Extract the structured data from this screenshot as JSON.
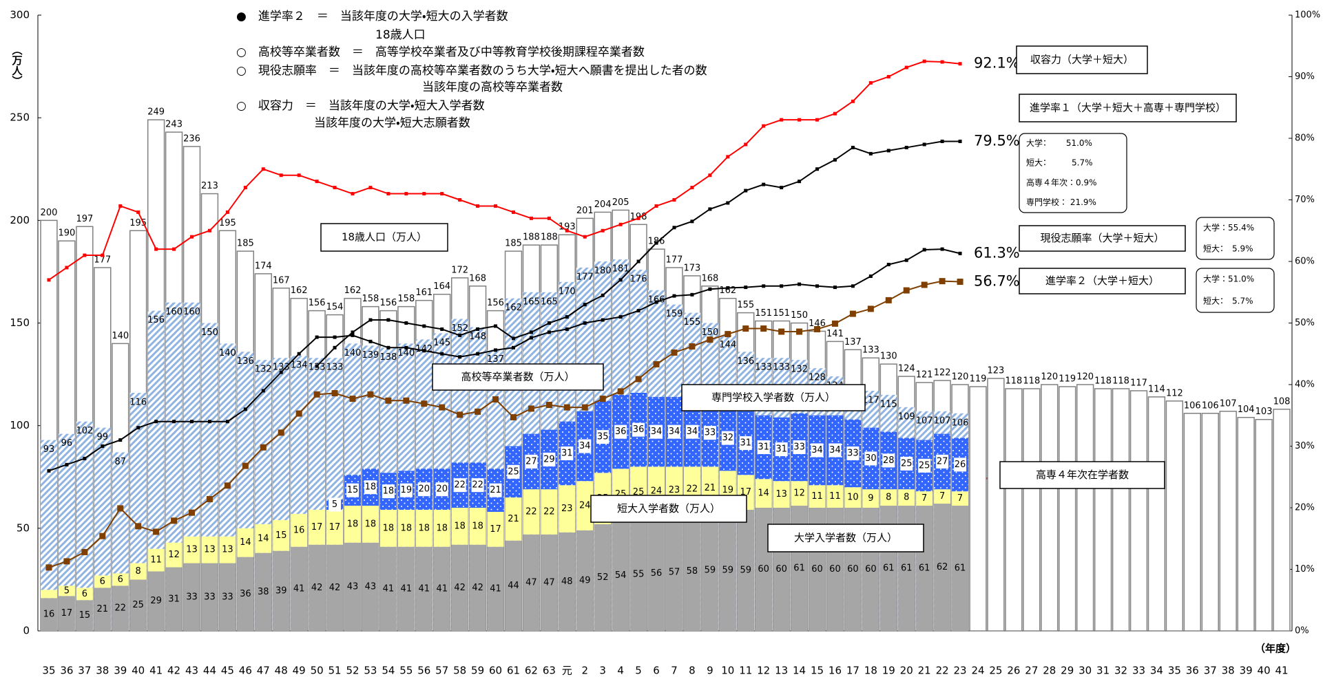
{
  "chart_data": {
    "type": "bar",
    "ylabel": "（万人）",
    "xlabel": "（年度）",
    "ylim": [
      0,
      300
    ],
    "yticks": [
      0,
      50,
      100,
      150,
      200,
      250,
      300
    ],
    "y2lim": [
      0,
      100
    ],
    "y2ticks": [
      {
        "value": 0,
        "label": "0%"
      },
      {
        "value": 10,
        "label": "10%"
      },
      {
        "value": 20,
        "label": "20%"
      },
      {
        "value": 30,
        "label": "30%"
      },
      {
        "value": 40,
        "label": "40%"
      },
      {
        "value": 50,
        "label": "50%"
      },
      {
        "value": 60,
        "label": "60%"
      },
      {
        "value": 70,
        "label": "70%"
      },
      {
        "value": 80,
        "label": "80%"
      },
      {
        "value": 90,
        "label": "90%"
      },
      {
        "value": 100,
        "label": "100%"
      }
    ],
    "grid": false,
    "categories": [
      "35",
      "36",
      "37",
      "38",
      "39",
      "40",
      "41",
      "42",
      "43",
      "44",
      "45",
      "46",
      "47",
      "48",
      "49",
      "50",
      "51",
      "52",
      "53",
      "54",
      "55",
      "56",
      "57",
      "58",
      "59",
      "60",
      "61",
      "62",
      "63",
      "元",
      "2",
      "3",
      "4",
      "5",
      "6",
      "7",
      "8",
      "9",
      "10",
      "11",
      "12",
      "13",
      "14",
      "15",
      "16",
      "17",
      "18",
      "19",
      "20",
      "21",
      "22",
      "23",
      "24",
      "25",
      "26",
      "27",
      "28",
      "29",
      "30",
      "31",
      "32",
      "33",
      "34",
      "35",
      "36",
      "37",
      "38",
      "39",
      "40",
      "41"
    ],
    "series": [
      {
        "name": "18歳人口（万人）",
        "type": "bar",
        "color": "#ffffff",
        "edge": "#808080",
        "values": [
          200,
          190,
          197,
          177,
          140,
          195,
          249,
          243,
          236,
          213,
          195,
          185,
          174,
          167,
          162,
          156,
          154,
          162,
          158,
          156,
          158,
          161,
          164,
          172,
          168,
          156,
          185,
          188,
          188,
          193,
          201,
          204,
          205,
          198,
          186,
          177,
          173,
          168,
          162,
          155,
          151,
          151,
          150,
          146,
          141,
          137,
          133,
          130,
          124,
          121,
          122,
          120,
          119,
          123,
          118,
          118,
          120,
          119,
          120,
          118,
          118,
          117,
          114,
          112,
          106,
          106,
          107,
          104,
          103,
          108
        ]
      },
      {
        "name": "高校等卒業者数（万人）",
        "type": "bar",
        "color": "#8fb4e3",
        "pattern": "diagonal",
        "values": [
          93,
          96,
          102,
          99,
          87,
          116,
          156,
          160,
          160,
          150,
          140,
          136,
          132,
          133,
          134,
          133,
          133,
          140,
          139,
          138,
          140,
          142,
          145,
          152,
          148,
          137,
          162,
          165,
          165,
          170,
          177,
          180,
          181,
          176,
          166,
          159,
          155,
          150,
          144,
          136,
          133,
          133,
          132,
          128,
          124,
          120,
          117,
          115,
          109,
          107,
          107,
          106,
          null,
          null,
          null,
          null,
          null,
          null,
          null,
          null,
          null,
          null,
          null,
          null,
          null,
          null,
          null,
          null,
          null,
          null
        ]
      },
      {
        "name": "大学入学者数（万人）",
        "type": "bar",
        "stack": "entrants",
        "color": "#a6a6a6",
        "values": [
          16,
          17,
          15,
          21,
          22,
          25,
          29,
          31,
          33,
          33,
          33,
          36,
          38,
          39,
          41,
          42,
          42,
          43,
          43,
          41,
          41,
          41,
          41,
          42,
          42,
          41,
          44,
          47,
          47,
          48,
          49,
          52,
          54,
          55,
          56,
          57,
          58,
          59,
          59,
          59,
          60,
          60,
          61,
          60,
          60,
          60,
          60,
          61,
          61,
          61,
          62,
          61,
          null,
          null,
          null,
          null,
          null,
          null,
          null,
          null,
          null,
          null,
          null,
          null,
          null,
          null,
          null,
          null,
          null,
          null
        ]
      },
      {
        "name": "短大入学者数（万人）",
        "type": "bar",
        "stack": "entrants",
        "color": "#ffff99",
        "values": [
          4,
          5,
          6,
          6,
          6,
          8,
          11,
          12,
          13,
          13,
          13,
          14,
          14,
          15,
          16,
          17,
          17,
          18,
          18,
          18,
          18,
          18,
          18,
          18,
          18,
          17,
          21,
          22,
          22,
          23,
          24,
          25,
          25,
          25,
          24,
          23,
          22,
          21,
          19,
          17,
          14,
          13,
          12,
          11,
          11,
          10,
          9,
          8,
          8,
          7,
          7,
          7,
          null,
          null,
          null,
          null,
          null,
          null,
          null,
          null,
          null,
          null,
          null,
          null,
          null,
          null,
          null,
          null,
          null,
          null
        ]
      },
      {
        "name": "専門学校入学者数（万人）",
        "type": "bar",
        "stack": "entrants",
        "color": "#3366ff",
        "pattern": "dots",
        "values": [
          null,
          null,
          null,
          null,
          null,
          null,
          null,
          null,
          null,
          null,
          null,
          null,
          null,
          null,
          null,
          null,
          5,
          15,
          18,
          18,
          19,
          20,
          20,
          22,
          22,
          21,
          25,
          27,
          29,
          31,
          34,
          35,
          36,
          36,
          34,
          34,
          34,
          33,
          32,
          31,
          31,
          31,
          33,
          34,
          34,
          33,
          30,
          28,
          25,
          25,
          27,
          26,
          null,
          null,
          null,
          null,
          null,
          null,
          null,
          null,
          null,
          null,
          null,
          null,
          null,
          null,
          null,
          null,
          null,
          null
        ]
      },
      {
        "name": "収容力（大学＋短大）",
        "type": "line",
        "axis": "y2",
        "color": "#ff0000",
        "marker": "square-small",
        "values": [
          57,
          59,
          61,
          61,
          69,
          68,
          62,
          62,
          64,
          65,
          68,
          72,
          75,
          74,
          74,
          73,
          72,
          71,
          72,
          71,
          71,
          71,
          71,
          70,
          69,
          69,
          68,
          67,
          67,
          65,
          64,
          65,
          66,
          67,
          69,
          70,
          72,
          74,
          77,
          79,
          82,
          83,
          83,
          83,
          84,
          86,
          89,
          90,
          91.5,
          92.5,
          92.4,
          92.1,
          null,
          null,
          null,
          null,
          null,
          null,
          null,
          null,
          null,
          null,
          null,
          null,
          null,
          null,
          null,
          null,
          null,
          null
        ],
        "value_labels": [
          null,
          null,
          null,
          null,
          null,
          null,
          null,
          null,
          null,
          null,
          null,
          null,
          null,
          null,
          null,
          null,
          null,
          null,
          null,
          null,
          null,
          null,
          null,
          null,
          null,
          null,
          null,
          null,
          null,
          null,
          null,
          null,
          null,
          null,
          null,
          null,
          null,
          null,
          null,
          null,
          null,
          null,
          null,
          null,
          null,
          null,
          null,
          null,
          null,
          null,
          null,
          "92.1%",
          null,
          null,
          null,
          null,
          null,
          null,
          null,
          null,
          null,
          null,
          null,
          null,
          null,
          null,
          null,
          null,
          null,
          null
        ]
      },
      {
        "name": "進学率１（大学＋短大＋高専＋専門学校）",
        "type": "line",
        "axis": "y2",
        "color": "#000000",
        "marker": "square-small",
        "values": [
          null,
          null,
          null,
          null,
          null,
          null,
          null,
          null,
          null,
          null,
          null,
          null,
          null,
          null,
          null,
          43,
          46,
          48.5,
          50.5,
          50.5,
          50,
          49.5,
          49,
          48,
          49,
          49.5,
          47.5,
          48.5,
          50,
          51,
          53,
          54.5,
          57,
          60,
          63,
          65.5,
          66.5,
          68.5,
          69.5,
          71.5,
          72.5,
          72,
          73,
          75,
          76.5,
          78.5,
          77.5,
          78,
          78.5,
          79,
          79.5,
          79.5,
          null,
          null,
          null,
          null,
          null,
          null,
          null,
          null,
          null,
          null,
          null,
          null,
          null,
          null,
          null,
          null,
          null,
          null
        ],
        "value_labels": [
          null,
          null,
          null,
          null,
          null,
          null,
          null,
          null,
          null,
          null,
          null,
          null,
          null,
          null,
          null,
          null,
          null,
          null,
          null,
          null,
          null,
          null,
          null,
          null,
          null,
          null,
          null,
          null,
          null,
          null,
          null,
          null,
          null,
          null,
          null,
          null,
          null,
          null,
          null,
          null,
          null,
          null,
          null,
          null,
          null,
          null,
          null,
          null,
          null,
          null,
          null,
          "79.5%",
          null,
          null,
          null,
          null,
          null,
          null,
          null,
          null,
          null,
          null,
          null,
          null,
          null,
          null,
          null,
          null,
          null,
          null
        ]
      },
      {
        "name": "現役志願率（大学＋短大）",
        "type": "line",
        "axis": "y2",
        "color": "#000000",
        "marker": "square-small",
        "values": [
          26,
          27,
          28,
          30,
          31,
          33,
          34,
          34,
          34,
          34,
          34,
          36,
          39,
          42,
          45,
          47.7,
          47.7,
          48,
          47,
          46,
          46,
          45.5,
          45,
          44.5,
          45,
          45.6,
          46,
          47.6,
          48.5,
          49,
          50,
          50.5,
          51,
          52,
          53.4,
          54.4,
          54.6,
          55.5,
          55.7,
          55.8,
          56,
          56,
          56.3,
          56,
          55.8,
          56,
          57.6,
          59.5,
          60.2,
          61.9,
          62,
          61.3,
          null,
          null,
          null,
          null,
          null,
          null,
          null,
          null,
          null,
          null,
          null,
          null,
          null,
          null,
          null,
          null,
          null,
          null
        ],
        "value_labels": [
          null,
          null,
          null,
          null,
          null,
          null,
          null,
          null,
          null,
          null,
          null,
          null,
          null,
          null,
          null,
          null,
          null,
          null,
          null,
          null,
          null,
          null,
          null,
          null,
          null,
          null,
          null,
          null,
          null,
          null,
          null,
          null,
          null,
          null,
          null,
          null,
          null,
          null,
          null,
          null,
          null,
          null,
          null,
          null,
          null,
          null,
          null,
          null,
          null,
          null,
          null,
          "61.3%",
          null,
          null,
          null,
          null,
          null,
          null,
          null,
          null,
          null,
          null,
          null,
          null,
          null,
          null,
          null,
          null,
          null,
          null
        ]
      },
      {
        "name": "進学率２（大学＋短大）",
        "type": "line",
        "axis": "y2",
        "color": "#7f3f00",
        "marker": "square-large",
        "values": [
          10.3,
          11.3,
          12.8,
          15.4,
          19.9,
          17.0,
          16.1,
          17.9,
          19.2,
          21.4,
          23.6,
          26.8,
          29.8,
          32.2,
          35.3,
          38.4,
          38.6,
          37.7,
          38.4,
          37.4,
          37.4,
          36.9,
          36.3,
          35.1,
          35.6,
          37.6,
          34.7,
          36.1,
          36.7,
          36.3,
          36.3,
          37.7,
          38.9,
          40.9,
          43.3,
          45.2,
          46.2,
          47.3,
          48.2,
          49.1,
          49.1,
          48.6,
          48.6,
          49.0,
          49.9,
          51.5,
          52.3,
          53.7,
          55.3,
          56.2,
          56.8,
          56.7,
          null,
          null,
          null,
          null,
          null,
          null,
          null,
          null,
          null,
          null,
          null,
          null,
          null,
          null,
          null,
          null,
          null,
          null
        ],
        "value_labels": [
          null,
          null,
          null,
          null,
          null,
          null,
          null,
          null,
          null,
          null,
          null,
          null,
          null,
          null,
          null,
          null,
          null,
          null,
          null,
          null,
          null,
          null,
          null,
          null,
          null,
          null,
          null,
          null,
          null,
          null,
          null,
          null,
          null,
          null,
          null,
          null,
          null,
          null,
          null,
          null,
          null,
          null,
          null,
          null,
          null,
          null,
          null,
          null,
          null,
          null,
          null,
          "56.7%",
          null,
          null,
          null,
          null,
          null,
          null,
          null,
          null,
          null,
          null,
          null,
          null,
          null,
          null,
          null,
          null,
          null,
          null
        ]
      }
    ],
    "annotations": [
      "●　進学率２　＝　当該年度の大学・短大の入学者数",
      "18歳人口",
      "○　高校等卒業者数　＝　高等学校卒業者及び中等教育学校後期課程卒業者数",
      "○　現役志願率　＝　当該年度の高校等卒業者数のうち大学・短大へ願書を提出した者の数",
      "当該年度の高校等卒業者数",
      "○　収容力　＝　当該年度の大学・短大入学者数",
      "当該年度の大学・短大志願者数",
      "高専４年次在学者数"
    ],
    "breakdowns": [
      [
        "大学：　　 51.0%",
        "短大：　　　5.7%",
        "高専４年次：0.9%",
        "専門学校： 21.9%"
      ],
      [
        "大学：55.4%",
        "短大：　5.9%"
      ],
      [
        "大学：51.0%",
        "短大：　5.7%"
      ]
    ]
  }
}
